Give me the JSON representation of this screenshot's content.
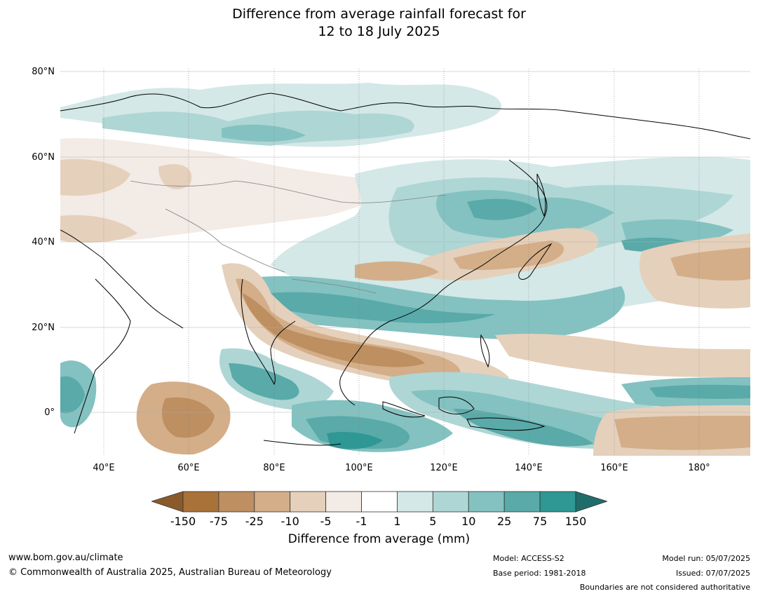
{
  "title_line1": "Difference from average rainfall forecast for",
  "title_line2": "12 to 18 July 2025",
  "lat_labels": [
    "80°N",
    "60°N",
    "40°N",
    "20°N",
    "0°"
  ],
  "lon_labels": [
    "40°E",
    "60°E",
    "80°E",
    "100°E",
    "120°E",
    "140°E",
    "160°E",
    "180°"
  ],
  "colorbar": {
    "ticks": [
      "-150",
      "-75",
      "-25",
      "-10",
      "-5",
      "-1",
      "1",
      "5",
      "10",
      "25",
      "75",
      "150"
    ],
    "colors": [
      "#8b5a2b",
      "#a97239",
      "#bd8f61",
      "#d3ae88",
      "#e5d0bb",
      "#f3ebe5",
      "#ffffff",
      "#d3e8e7",
      "#aed6d5",
      "#83c2c1",
      "#59aaa9",
      "#2f9794",
      "#1f6d6b"
    ],
    "label": "Difference from average (mm)"
  },
  "footer": {
    "url": "www.bom.gov.au/climate",
    "copyright": "© Commonwealth of Australia 2025, Australian Bureau of Meteorology",
    "model": "Model: ACCESS-S2",
    "base_period": "Base period: 1981-2018",
    "model_run": "Model run: 05/07/2025",
    "issued": "Issued: 07/07/2025",
    "disclaimer": "Boundaries are not considered authoritative"
  }
}
